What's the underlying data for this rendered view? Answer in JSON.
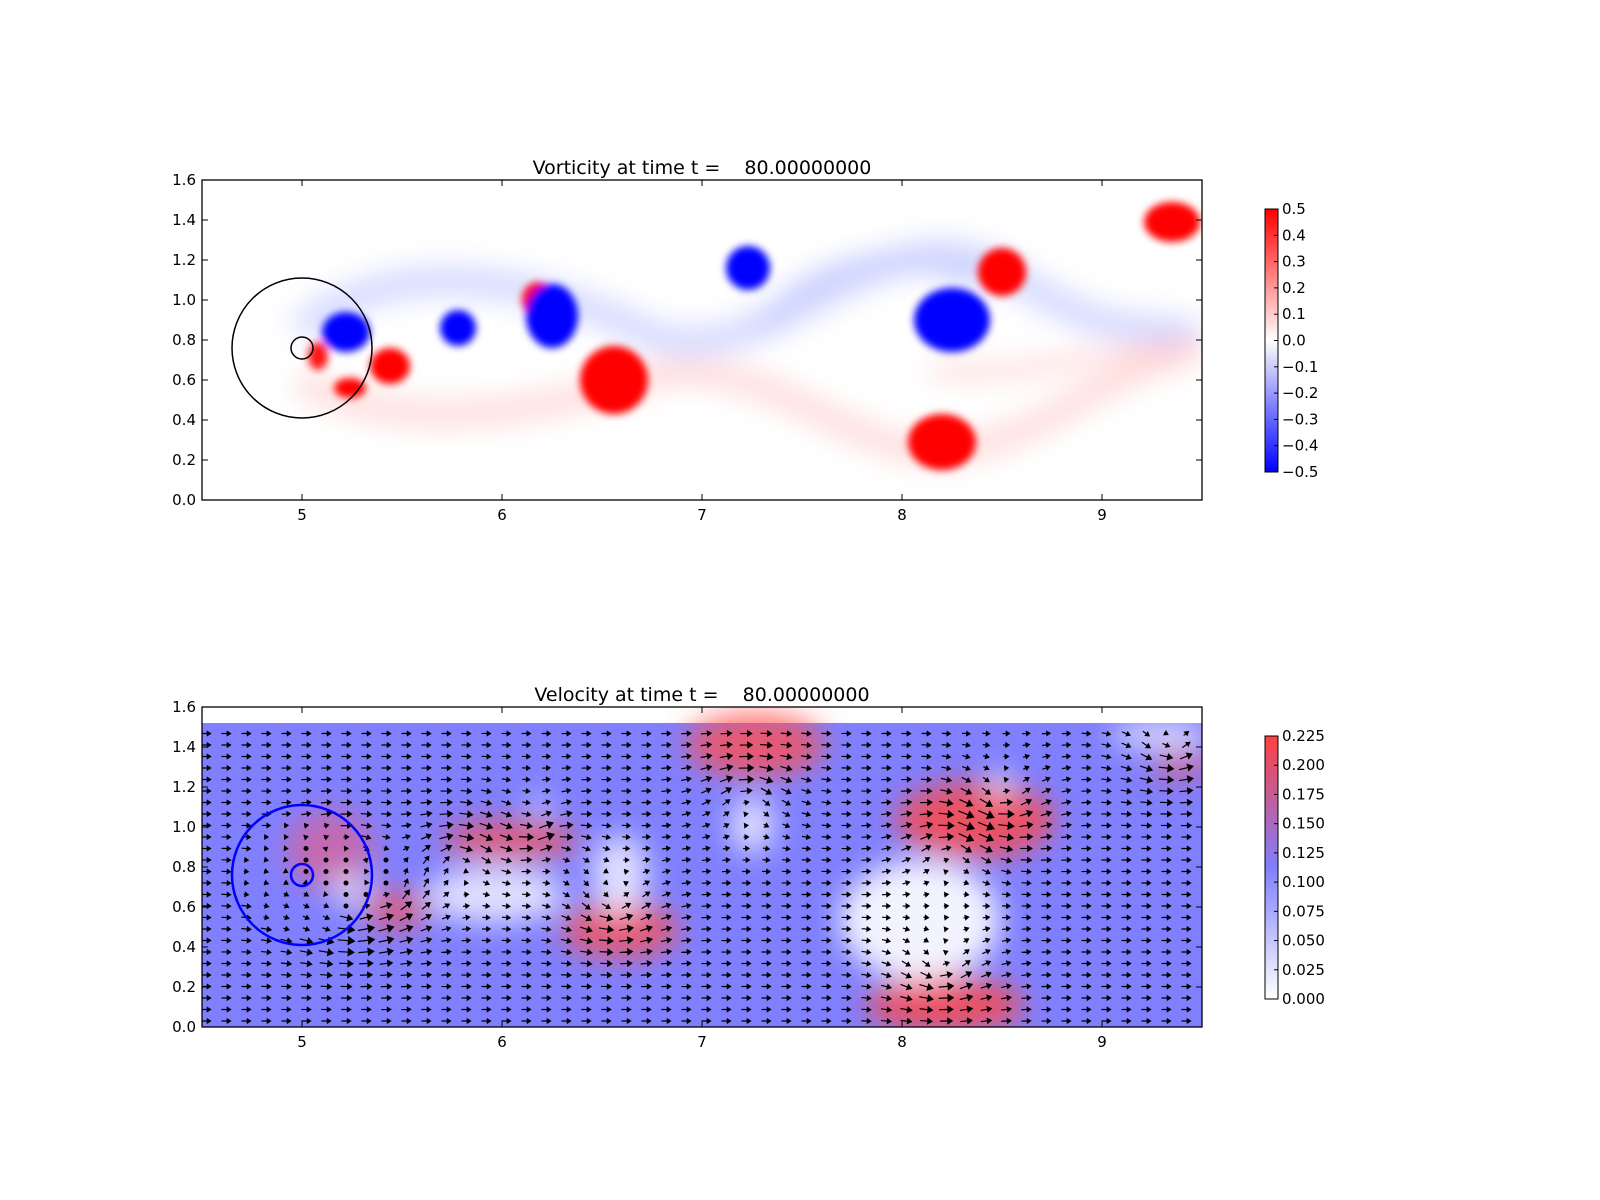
{
  "chart_data": [
    {
      "type": "heatmap",
      "title": "Vorticity at time t =    80.00000000",
      "xlabel": "",
      "ylabel": "",
      "xlim": [
        4.5,
        9.5
      ],
      "ylim": [
        0.0,
        1.6
      ],
      "x_ticks": [
        "5",
        "6",
        "7",
        "8",
        "9"
      ],
      "y_ticks": [
        "0.0",
        "0.2",
        "0.4",
        "0.6",
        "0.8",
        "1.0",
        "1.2",
        "1.4",
        "1.6"
      ],
      "colormap": {
        "low": "#0000ff",
        "mid": "#ffffff",
        "high": "#ff0000"
      },
      "colorbar": {
        "range": [
          -0.5,
          0.5
        ],
        "ticks": [
          "0.5",
          "0.4",
          "0.3",
          "0.2",
          "0.1",
          "0.0",
          "−0.1",
          "−0.2",
          "−0.3",
          "−0.4",
          "−0.5"
        ]
      },
      "vortices": [
        {
          "x": 5.22,
          "y": 0.84,
          "rx": 0.12,
          "ry": 0.1,
          "w": -0.5
        },
        {
          "x": 5.44,
          "y": 0.67,
          "rx": 0.1,
          "ry": 0.09,
          "w": 0.5
        },
        {
          "x": 5.24,
          "y": 0.56,
          "rx": 0.08,
          "ry": 0.05,
          "w": 0.5
        },
        {
          "x": 5.08,
          "y": 0.72,
          "rx": 0.05,
          "ry": 0.07,
          "w": 0.45
        },
        {
          "x": 5.78,
          "y": 0.86,
          "rx": 0.09,
          "ry": 0.09,
          "w": -0.5
        },
        {
          "x": 6.18,
          "y": 1.0,
          "rx": 0.08,
          "ry": 0.09,
          "w": 0.5
        },
        {
          "x": 6.25,
          "y": 0.92,
          "rx": 0.13,
          "ry": 0.16,
          "w": -0.5
        },
        {
          "x": 6.56,
          "y": 0.6,
          "rx": 0.17,
          "ry": 0.17,
          "w": 0.5
        },
        {
          "x": 7.23,
          "y": 1.16,
          "rx": 0.11,
          "ry": 0.11,
          "w": -0.5
        },
        {
          "x": 8.25,
          "y": 0.9,
          "rx": 0.19,
          "ry": 0.16,
          "w": -0.5
        },
        {
          "x": 8.5,
          "y": 1.14,
          "rx": 0.12,
          "ry": 0.12,
          "w": 0.5
        },
        {
          "x": 8.2,
          "y": 0.29,
          "rx": 0.17,
          "ry": 0.14,
          "w": 0.5
        },
        {
          "x": 9.35,
          "y": 1.39,
          "rx": 0.14,
          "ry": 0.1,
          "w": 0.5
        }
      ],
      "circles": [
        {
          "x": 5.0,
          "y": 0.76,
          "r": 0.35,
          "color": "#000000"
        },
        {
          "x": 5.0,
          "y": 0.76,
          "r": 0.055,
          "color": "#000000"
        }
      ]
    },
    {
      "type": "heatmap",
      "title": "Velocity at time t =    80.00000000",
      "xlabel": "",
      "ylabel": "",
      "xlim": [
        4.5,
        9.5
      ],
      "ylim": [
        0.0,
        1.6
      ],
      "x_ticks": [
        "5",
        "6",
        "7",
        "8",
        "9"
      ],
      "y_ticks": [
        "0.0",
        "0.2",
        "0.4",
        "0.6",
        "0.8",
        "1.0",
        "1.2",
        "1.4",
        "1.6"
      ],
      "field_ylim": [
        0.0,
        1.52
      ],
      "colormap": {
        "low": "#ffffff",
        "mid": "#7f7fff",
        "high": "#ff4040"
      },
      "colorbar": {
        "range": [
          0.0,
          0.225
        ],
        "ticks": [
          "0.225",
          "0.200",
          "0.175",
          "0.150",
          "0.125",
          "0.100",
          "0.075",
          "0.050",
          "0.025",
          "0.000"
        ]
      },
      "circles": [
        {
          "x": 5.0,
          "y": 0.76,
          "r": 0.35,
          "color": "#0000ff"
        },
        {
          "x": 5.0,
          "y": 0.76,
          "r": 0.055,
          "color": "#0000ff"
        }
      ]
    }
  ]
}
